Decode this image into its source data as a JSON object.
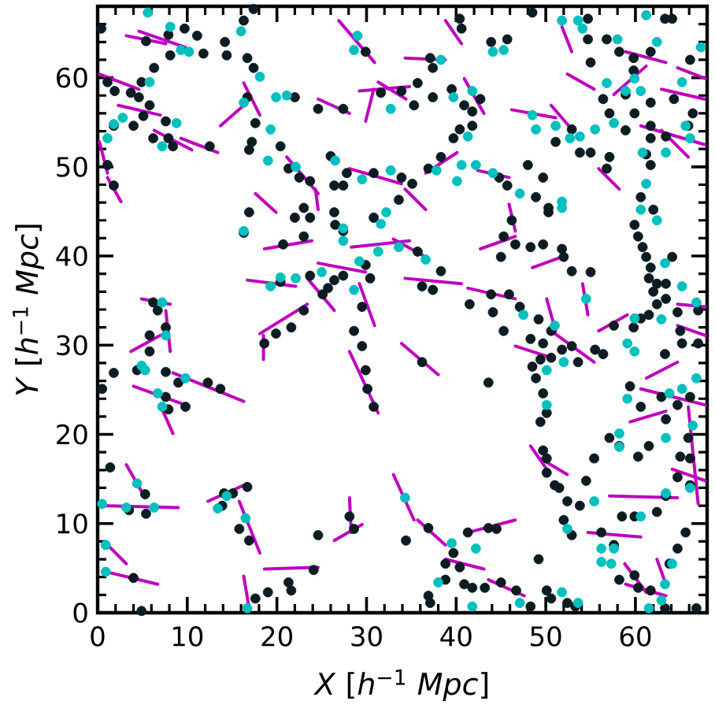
{
  "chart_data": {
    "type": "scatter",
    "xlabel": "*X* [*h*$^{−1}$ *Mpc*]",
    "ylabel": "*Y* [*h*$^{−1}$ *Mpc*]",
    "xlim": [
      0,
      68
    ],
    "ylim": [
      0,
      68
    ],
    "xticks": [
      0,
      {
        "value": 2,
        "label": null
      },
      {
        "value": 4,
        "label": null
      },
      {
        "value": 6,
        "label": null
      },
      {
        "value": 8,
        "label": null
      },
      10,
      {
        "value": 12,
        "label": null
      },
      {
        "value": 14,
        "label": null
      },
      {
        "value": 16,
        "label": null
      },
      {
        "value": 18,
        "label": null
      },
      20,
      {
        "value": 22,
        "label": null
      },
      {
        "value": 24,
        "label": null
      },
      {
        "value": 26,
        "label": null
      },
      {
        "value": 28,
        "label": null
      },
      30,
      {
        "value": 32,
        "label": null
      },
      {
        "value": 34,
        "label": null
      },
      {
        "value": 36,
        "label": null
      },
      {
        "value": 38,
        "label": null
      },
      40,
      {
        "value": 42,
        "label": null
      },
      {
        "value": 44,
        "label": null
      },
      {
        "value": 46,
        "label": null
      },
      {
        "value": 48,
        "label": null
      },
      50,
      {
        "value": 52,
        "label": null
      },
      {
        "value": 54,
        "label": null
      },
      {
        "value": 56,
        "label": null
      },
      {
        "value": 58,
        "label": null
      },
      60,
      {
        "value": 62,
        "label": null
      },
      {
        "value": 64,
        "label": null
      },
      {
        "value": 66,
        "label": null
      }
    ],
    "yticks": [
      0,
      {
        "value": 2,
        "label": null
      },
      {
        "value": 4,
        "label": null
      },
      {
        "value": 6,
        "label": null
      },
      {
        "value": 8,
        "label": null
      },
      10,
      {
        "value": 12,
        "label": null
      },
      {
        "value": 14,
        "label": null
      },
      {
        "value": 16,
        "label": null
      },
      {
        "value": 18,
        "label": null
      },
      20,
      {
        "value": 22,
        "label": null
      },
      {
        "value": 24,
        "label": null
      },
      {
        "value": 26,
        "label": null
      },
      {
        "value": 28,
        "label": null
      },
      30,
      {
        "value": 32,
        "label": null
      },
      {
        "value": 34,
        "label": null
      },
      {
        "value": 36,
        "label": null
      },
      {
        "value": 38,
        "label": null
      },
      40,
      {
        "value": 42,
        "label": null
      },
      {
        "value": 44,
        "label": null
      },
      {
        "value": 46,
        "label": null
      },
      {
        "value": 48,
        "label": null
      },
      50,
      {
        "value": 52,
        "label": null
      },
      {
        "value": 54,
        "label": null
      },
      {
        "value": 56,
        "label": null
      },
      {
        "value": 58,
        "label": null
      },
      60,
      {
        "value": 62,
        "label": null
      },
      {
        "value": 64,
        "label": null
      },
      {
        "value": 66,
        "label": null
      }
    ],
    "marker": "circle",
    "series": [
      {
        "type": "line",
        "marker": "none",
        "color": "#bf00bf",
        "x": [
          26.9,
          30.9
        ],
        "values": [
          66.4,
          61.7
        ]
      },
      {
        "type": "line",
        "marker": "none",
        "color": "#bf00bf",
        "x": [
          3.2,
          7.6
        ],
        "values": [
          64.7,
          63.8
        ]
      },
      {
        "type": "line",
        "marker": "none",
        "color": "#bf00bf",
        "x": [
          0.2,
          4.6
        ],
        "values": [
          60.4,
          58.7
        ]
      },
      {
        "type": "line",
        "marker": "none",
        "color": "#bf00bf",
        "x": [
          13.7,
          16.3
        ],
        "values": [
          54.6,
          56.9
        ]
      },
      {
        "type": "line",
        "marker": "none",
        "color": "#bf00bf",
        "x": [
          24.6,
          28.1
        ],
        "values": [
          57.6,
          56.0
        ]
      },
      {
        "type": "line",
        "marker": "none",
        "color": "#bf00bf",
        "x": [
          29.2,
          34.8
        ],
        "values": [
          58.5,
          59.0
        ]
      },
      {
        "type": "line",
        "marker": "none",
        "color": "#bf00bf",
        "x": [
          30.8,
          29.9
        ],
        "values": [
          58.7,
          55.1
        ]
      },
      {
        "type": "line",
        "marker": "none",
        "color": "#bf00bf",
        "x": [
          16.3,
          18.1
        ],
        "values": [
          59.4,
          55.8
        ]
      },
      {
        "type": "line",
        "marker": "none",
        "color": "#bf00bf",
        "x": [
          31.3,
          34.4
        ],
        "values": [
          59.5,
          57.6
        ]
      },
      {
        "type": "line",
        "marker": "none",
        "color": "#bf00bf",
        "x": [
          24.3,
          24.6
        ],
        "values": [
          47.5,
          45.2
        ]
      },
      {
        "type": "line",
        "marker": "none",
        "color": "#bf00bf",
        "x": [
          6.3,
          10.5
        ],
        "values": [
          54.1,
          51.9
        ]
      },
      {
        "type": "line",
        "marker": "none",
        "color": "#bf00bf",
        "x": [
          9.3,
          13.4
        ],
        "values": [
          53.2,
          51.6
        ]
      },
      {
        "type": "line",
        "marker": "none",
        "color": "#bf00bf",
        "x": [
          0.2,
          1.1
        ],
        "values": [
          52.8,
          49.3
        ]
      },
      {
        "type": "line",
        "marker": "none",
        "color": "#bf00bf",
        "x": [
          1.1,
          2.6
        ],
        "values": [
          48.8,
          46.1
        ]
      },
      {
        "type": "line",
        "marker": "none",
        "color": "#bf00bf",
        "x": [
          34.3,
          38.8
        ],
        "values": [
          62.2,
          62.0
        ]
      },
      {
        "type": "line",
        "marker": "none",
        "color": "#bf00bf",
        "x": [
          38.8,
          40.6
        ],
        "values": [
          66.4,
          63.8
        ]
      },
      {
        "type": "line",
        "marker": "none",
        "color": "#bf00bf",
        "x": [
          46.2,
          51.1
        ],
        "values": [
          56.4,
          55.5
        ]
      },
      {
        "type": "line",
        "marker": "none",
        "color": "#bf00bf",
        "x": [
          52.4,
          55.4
        ],
        "values": [
          60.4,
          58.7
        ]
      },
      {
        "type": "line",
        "marker": "none",
        "color": "#bf00bf",
        "x": [
          57.6,
          61.2
        ],
        "values": [
          58.1,
          61.3
        ]
      },
      {
        "type": "line",
        "marker": "none",
        "color": "#bf00bf",
        "x": [
          62.9,
          67.7
        ],
        "values": [
          58.7,
          57.6
        ]
      },
      {
        "type": "line",
        "marker": "none",
        "color": "#bf00bf",
        "x": [
          60.6,
          67.7
        ],
        "values": [
          54.6,
          52.5
        ]
      },
      {
        "type": "line",
        "marker": "none",
        "color": "#bf00bf",
        "x": [
          62.9,
          65.9
        ],
        "values": [
          54.1,
          51.1
        ]
      },
      {
        "type": "line",
        "marker": "none",
        "color": "#bf00bf",
        "x": [
          55.9,
          58.2
        ],
        "values": [
          49.8,
          47.5
        ]
      },
      {
        "type": "line",
        "marker": "none",
        "color": "#bf00bf",
        "x": [
          36.6,
          40.1
        ],
        "values": [
          49.3,
          51.6
        ]
      },
      {
        "type": "line",
        "marker": "none",
        "color": "#bf00bf",
        "x": [
          42.4,
          45.9
        ],
        "values": [
          49.6,
          48.8
        ]
      },
      {
        "type": "line",
        "marker": "none",
        "color": "#bf00bf",
        "x": [
          34.3,
          36.6
        ],
        "values": [
          47.5,
          45.2
        ]
      },
      {
        "type": "line",
        "marker": "none",
        "color": "#bf00bf",
        "x": [
          16.7,
          22.1
        ],
        "values": [
          37.3,
          36.6
        ]
      },
      {
        "type": "line",
        "marker": "none",
        "color": "#bf00bf",
        "x": [
          18.6,
          23.9
        ],
        "values": [
          40.8,
          41.7
        ]
      },
      {
        "type": "line",
        "marker": "none",
        "color": "#bf00bf",
        "x": [
          28.3,
          34.8
        ],
        "values": [
          41.0,
          41.7
        ]
      },
      {
        "type": "line",
        "marker": "none",
        "color": "#bf00bf",
        "x": [
          29.2,
          30.9
        ],
        "values": [
          36.9,
          32.2
        ]
      },
      {
        "type": "line",
        "marker": "none",
        "color": "#bf00bf",
        "x": [
          28.1,
          31.3
        ],
        "values": [
          29.3,
          22.4
        ]
      },
      {
        "type": "line",
        "marker": "none",
        "color": "#bf00bf",
        "x": [
          18.1,
          23.4
        ],
        "values": [
          31.3,
          34.6
        ]
      },
      {
        "type": "line",
        "marker": "none",
        "color": "#bf00bf",
        "x": [
          18.5,
          18.5
        ],
        "values": [
          31.1,
          28.4
        ]
      },
      {
        "type": "line",
        "marker": "none",
        "color": "#bf00bf",
        "x": [
          4.9,
          8.1
        ],
        "values": [
          35.2,
          34.6
        ]
      },
      {
        "type": "line",
        "marker": "none",
        "color": "#bf00bf",
        "x": [
          7.6,
          8.1
        ],
        "values": [
          33.9,
          29.3
        ]
      },
      {
        "type": "line",
        "marker": "none",
        "color": "#bf00bf",
        "x": [
          3.7,
          7.0
        ],
        "values": [
          29.3,
          31.1
        ]
      },
      {
        "type": "line",
        "marker": "none",
        "color": "#bf00bf",
        "x": [
          8.4,
          16.3
        ],
        "values": [
          26.9,
          23.7
        ]
      },
      {
        "type": "line",
        "marker": "none",
        "color": "#bf00bf",
        "x": [
          4.0,
          9.8
        ],
        "values": [
          25.4,
          23.3
        ]
      },
      {
        "type": "line",
        "marker": "none",
        "color": "#bf00bf",
        "x": [
          33.9,
          38.0
        ],
        "values": [
          30.2,
          26.7
        ]
      },
      {
        "type": "line",
        "marker": "none",
        "color": "#bf00bf",
        "x": [
          33.0,
          36.6
        ],
        "values": [
          41.9,
          39.9
        ]
      },
      {
        "type": "line",
        "marker": "none",
        "color": "#bf00bf",
        "x": [
          34.3,
          40.6
        ],
        "values": [
          37.5,
          36.9
        ]
      },
      {
        "type": "line",
        "marker": "none",
        "color": "#bf00bf",
        "x": [
          41.3,
          46.6
        ],
        "values": [
          36.4,
          35.2
        ]
      },
      {
        "type": "line",
        "marker": "none",
        "color": "#bf00bf",
        "x": [
          42.7,
          46.6
        ],
        "values": [
          40.8,
          42.2
        ]
      },
      {
        "type": "line",
        "marker": "none",
        "color": "#bf00bf",
        "x": [
          48.5,
          51.8
        ],
        "values": [
          38.7,
          39.9
        ]
      },
      {
        "type": "line",
        "marker": "none",
        "color": "#bf00bf",
        "x": [
          50.1,
          51.1
        ],
        "values": [
          35.2,
          31.6
        ]
      },
      {
        "type": "line",
        "marker": "none",
        "color": "#bf00bf",
        "x": [
          54.1,
          54.7
        ],
        "values": [
          36.9,
          33.4
        ]
      },
      {
        "type": "line",
        "marker": "none",
        "color": "#bf00bf",
        "x": [
          55.9,
          59.1
        ],
        "values": [
          31.6,
          33.4
        ]
      },
      {
        "type": "line",
        "marker": "none",
        "color": "#bf00bf",
        "x": [
          61.2,
          64.7
        ],
        "values": [
          26.3,
          28.1
        ]
      },
      {
        "type": "line",
        "marker": "none",
        "color": "#bf00bf",
        "x": [
          60.6,
          67.8
        ],
        "values": [
          25.1,
          23.3
        ]
      },
      {
        "type": "line",
        "marker": "none",
        "color": "#bf00bf",
        "x": [
          45.9,
          46.6
        ],
        "values": [
          45.8,
          42.8
        ]
      },
      {
        "type": "line",
        "marker": "none",
        "color": "#bf00bf",
        "x": [
          3.2,
          5.3
        ],
        "values": [
          16.6,
          12.9
        ]
      },
      {
        "type": "line",
        "marker": "none",
        "color": "#bf00bf",
        "x": [
          0.5,
          9.0
        ],
        "values": [
          12.0,
          11.8
        ]
      },
      {
        "type": "line",
        "marker": "none",
        "color": "#bf00bf",
        "x": [
          12.3,
          16.3
        ],
        "values": [
          12.5,
          14.3
        ]
      },
      {
        "type": "line",
        "marker": "none",
        "color": "#bf00bf",
        "x": [
          15.8,
          18.1
        ],
        "values": [
          12.5,
          6.7
        ]
      },
      {
        "type": "line",
        "marker": "none",
        "color": "#bf00bf",
        "x": [
          1.1,
          3.2
        ],
        "values": [
          7.6,
          5.5
        ]
      },
      {
        "type": "line",
        "marker": "none",
        "color": "#bf00bf",
        "x": [
          0.9,
          6.7
        ],
        "values": [
          4.6,
          3.2
        ]
      },
      {
        "type": "line",
        "marker": "none",
        "color": "#bf00bf",
        "x": [
          18.6,
          24.6
        ],
        "values": [
          4.9,
          5.1
        ]
      },
      {
        "type": "line",
        "marker": "none",
        "color": "#bf00bf",
        "x": [
          28.1,
          28.3
        ],
        "values": [
          12.9,
          9.0
        ]
      },
      {
        "type": "line",
        "marker": "none",
        "color": "#bf00bf",
        "x": [
          26.4,
          29.5
        ],
        "values": [
          8.1,
          9.9
        ]
      },
      {
        "type": "line",
        "marker": "none",
        "color": "#bf00bf",
        "x": [
          16.3,
          16.9
        ],
        "values": [
          4.1,
          0.5
        ]
      },
      {
        "type": "line",
        "marker": "none",
        "color": "#bf00bf",
        "x": [
          7.2,
          8.4
        ],
        "values": [
          22.8,
          20.1
        ]
      },
      {
        "type": "line",
        "marker": "none",
        "color": "#bf00bf",
        "x": [
          33.0,
          35.3
        ],
        "values": [
          15.5,
          10.4
        ]
      },
      {
        "type": "line",
        "marker": "none",
        "color": "#bf00bf",
        "x": [
          35.7,
          38.8
        ],
        "values": [
          10.4,
          7.6
        ]
      },
      {
        "type": "line",
        "marker": "none",
        "color": "#bf00bf",
        "x": [
          41.3,
          46.6
        ],
        "values": [
          9.0,
          10.4
        ]
      },
      {
        "type": "line",
        "marker": "none",
        "color": "#bf00bf",
        "x": [
          48.3,
          50.1
        ],
        "values": [
          18.7,
          16.1
        ]
      },
      {
        "type": "line",
        "marker": "none",
        "color": "#bf00bf",
        "x": [
          57.1,
          64.7
        ],
        "values": [
          13.1,
          12.9
        ]
      },
      {
        "type": "line",
        "marker": "none",
        "color": "#bf00bf",
        "x": [
          54.7,
          60.6
        ],
        "values": [
          9.0,
          8.5
        ]
      },
      {
        "type": "line",
        "marker": "none",
        "color": "#bf00bf",
        "x": [
          65.9,
          67.0
        ],
        "values": [
          23.1,
          12.2
        ]
      },
      {
        "type": "line",
        "marker": "none",
        "color": "#bf00bf",
        "x": [
          58.8,
          61.2
        ],
        "values": [
          5.5,
          2.3
        ]
      },
      {
        "type": "line",
        "marker": "none",
        "color": "#bf00bf",
        "x": [
          62.4,
          63.4
        ],
        "values": [
          6.0,
          3.2
        ]
      },
      {
        "type": "line",
        "marker": "none",
        "color": "#bf00bf",
        "x": [
          51.8,
          52.9
        ],
        "values": [
          65.7,
          62.9
        ]
      },
      {
        "type": "line",
        "marker": "none",
        "color": "#bf00bf",
        "x": [
          17.6,
          19.9
        ],
        "values": [
          47.0,
          44.9
        ]
      },
      {
        "type": "line",
        "marker": "none",
        "color": "#bf00bf",
        "x": [
          50.6,
          52.9
        ],
        "values": [
          56.9,
          54.2
        ]
      },
      {
        "type": "line",
        "marker": "none",
        "color": "#bf00bf",
        "x": [
          64.7,
          67.8
        ],
        "values": [
          61.1,
          59.9
        ]
      },
      {
        "type": "line",
        "marker": "none",
        "color": "#bf00bf",
        "x": [
          58.9,
          63.4
        ],
        "values": [
          62.9,
          61.7
        ]
      },
      {
        "type": "line",
        "marker": "none",
        "color": "#bf00bf",
        "x": [
          43.1,
          40.9
        ],
        "values": [
          56.0,
          59.9
        ]
      },
      {
        "type": "line",
        "marker": "none",
        "color": "#bf00bf",
        "x": [
          50.6,
          55.4
        ],
        "values": [
          31.6,
          28.1
        ]
      },
      {
        "type": "line",
        "marker": "none",
        "color": "#bf00bf",
        "x": [
          46.6,
          50.6
        ],
        "values": [
          29.9,
          28.6
        ]
      },
      {
        "type": "line",
        "marker": "none",
        "color": "#bf00bf",
        "x": [
          64.7,
          67.8
        ],
        "values": [
          34.6,
          34.3
        ]
      },
      {
        "type": "line",
        "marker": "none",
        "color": "#bf00bf",
        "x": [
          64.7,
          67.8
        ],
        "values": [
          32.2,
          31.1
        ]
      },
      {
        "type": "line",
        "marker": "none",
        "color": "#bf00bf",
        "x": [
          49.4,
          52.4
        ],
        "values": [
          17.3,
          15.5
        ]
      },
      {
        "type": "line",
        "marker": "none",
        "color": "#bf00bf",
        "x": [
          59.4,
          63.4
        ],
        "values": [
          21.4,
          22.6
        ]
      },
      {
        "type": "line",
        "marker": "none",
        "color": "#bf00bf",
        "x": [
          64.1,
          67.8
        ],
        "values": [
          16.1,
          14.8
        ]
      },
      {
        "type": "line",
        "marker": "none",
        "color": "#bf00bf",
        "x": [
          38.8,
          43.1
        ],
        "values": [
          6.0,
          4.9
        ]
      },
      {
        "type": "line",
        "marker": "none",
        "color": "#bf00bf",
        "x": [
          43.6,
          47.6
        ],
        "values": [
          3.7,
          1.9
        ]
      },
      {
        "type": "line",
        "marker": "none",
        "color": "#bf00bf",
        "x": [
          58.9,
          63.4
        ],
        "values": [
          3.2,
          1.9
        ]
      },
      {
        "type": "line",
        "marker": "none",
        "color": "#bf00bf",
        "x": [
          4.6,
          9.8
        ],
        "values": [
          65.2,
          63.4
        ]
      },
      {
        "type": "line",
        "marker": "none",
        "color": "#bf00bf",
        "x": [
          2.3,
          7.0
        ],
        "values": [
          56.9,
          55.8
        ]
      },
      {
        "type": "line",
        "marker": "none",
        "color": "#bf00bf",
        "x": [
          28.1,
          33.9
        ],
        "values": [
          49.8,
          48.1
        ]
      },
      {
        "type": "line",
        "marker": "none",
        "color": "#bf00bf",
        "x": [
          21.1,
          24.6
        ],
        "values": [
          51.1,
          47.0
        ]
      },
      {
        "type": "line",
        "marker": "none",
        "color": "#bf00bf",
        "x": [
          24.6,
          29.9
        ],
        "values": [
          39.2,
          38.2
        ]
      },
      {
        "type": "line",
        "marker": "none",
        "color": "#bf00bf",
        "x": [
          23.4,
          26.4
        ],
        "values": [
          37.5,
          33.9
        ]
      },
      {
        "color": "#0b1c22",
        "x": [
          0.4,
          5.4,
          7.9,
          9.7,
          11.1,
          11.8,
          8.1,
          14.2,
          14.4,
          16.3,
          17.4,
          16.7,
          17.4,
          6.3,
          1.1,
          1.9,
          3.7,
          4.6,
          4.9,
          5.8,
          5.1,
          7.6,
          1.8,
          4.0,
          6.2,
          7.9,
          8.4,
          12.5,
          16.7,
          17.6,
          17.2,
          16.9,
          22.0,
          24.6,
          27.4,
          29.9,
          31.6,
          33.9,
          20.4,
          21.3,
          22.5,
          23.7,
          26.4,
          27.4,
          26.0,
          27.8,
          30.8,
          33.9,
          1.1,
          1.8,
          23.0,
          33.6,
          40.4,
          40.6,
          48.5,
          43.9,
          45.7,
          37.1,
          37.4,
          35.7,
          35.3,
          37.4,
          39.5,
          40.9,
          41.8,
          42.7,
          41.8,
          40.4,
          39.7,
          38.3,
          36.9,
          35.1,
          44.8,
          45.7,
          48.0,
          49.7,
          48.9,
          50.3,
          52.9,
          53.8,
          55.0,
          57.1,
          56.8,
          51.1,
          56.4,
          58.9,
          57.1,
          59.9,
          58.9,
          61.7,
          61.7,
          61.7,
          61.2,
          61.7,
          60.6,
          63.4,
          64.3,
          66.4,
          65.9,
          54.7,
          54.7,
          55.0,
          58.2,
          59.8,
          61.7,
          63.3,
          64.1,
          66.1,
          59.8,
          56.8,
          16.9,
          16.3,
          20.7,
          23.0,
          22.0,
          23.7,
          26.4,
          26.5,
          27.4,
          30.8,
          20.4,
          23.7,
          25.1,
          25.7,
          26.4,
          27.4,
          29.9,
          30.4,
          23.0,
          21.6,
          19.9,
          18.6,
          29.5,
          28.6,
          29.5,
          29.9,
          30.1,
          30.8,
          6.2,
          6.7,
          7.6,
          5.8,
          5.8,
          4.4,
          1.8,
          0.5,
          7.6,
          9.0,
          12.3,
          13.7,
          7.6,
          9.8,
          50.3,
          46.2,
          45.3,
          46.6,
          48.3,
          49.7,
          51.8,
          52.0,
          52.9,
          55.0,
          45.0,
          35.7,
          38.3,
          36.2,
          37.4,
          41.5,
          43.9,
          44.1,
          45.9,
          47.1,
          45.3,
          49.2,
          48.3,
          50.6,
          49.7,
          51.8,
          52.9,
          50.6,
          49.4,
          48.5,
          48.9,
          49.7,
          50.1,
          53.6,
          55.5,
          56.4,
          57.6,
          59.8,
          60.6,
          62.0,
          59.9,
          60.3,
          60.8,
          61.2,
          61.7,
          61.5,
          62.4,
          62.0,
          62.4,
          61.5,
          63.4,
          64.1,
          63.4,
          65.0,
          64.7,
          67.0,
          67.0,
          65.2,
          63.3,
          59.4,
          60.6,
          62.9,
          64.7,
          66.1,
          36.2,
          43.6,
          7.9,
          1.4,
          5.3,
          3.5,
          5.4,
          14.1,
          15.1,
          16.7,
          13.9,
          15.8,
          16.9,
          24.6,
          28.1,
          28.6,
          4.0,
          4.9,
          17.6,
          19.0,
          21.3,
          21.6,
          24.1,
          49.4,
          49.7,
          50.1,
          50.1,
          51.0,
          51.5,
          52.4,
          53.8,
          52.0,
          52.9,
          57.1,
          58.2,
          60.3,
          61.5,
          63.4,
          66.1,
          64.7,
          63.4,
          62.4,
          59.9,
          58.5,
          56.2,
          65.6,
          64.7,
          63.8,
          61.7,
          60.3,
          59.9,
          58.2,
          55.4,
          54.5,
          57.6,
          49.2,
          43.6,
          44.5,
          41.3,
          36.9,
          34.4,
          38.8,
          39.7,
          40.4,
          38.8,
          40.9,
          41.8,
          43.2,
          45.0,
          46.7,
          36.9,
          37.1,
          48.3,
          50.1,
          50.6,
          52.4,
          53.3,
          63.3,
          66.8,
          65.9,
          65.0,
          66.1
        ],
        "values": [
          65.5,
          64.1,
          64.8,
          65.5,
          64.7,
          62.7,
          62.5,
          64.0,
          62.5,
          66.4,
          67.7,
          62.2,
          61.1,
          61.1,
          59.5,
          58.5,
          58.3,
          57.8,
          59.5,
          56.9,
          55.7,
          55.1,
          54.6,
          54.6,
          53.2,
          53.2,
          52.3,
          52.3,
          57.8,
          54.9,
          52.8,
          51.9,
          57.8,
          56.5,
          56.5,
          62.9,
          58.3,
          58.5,
          52.3,
          49.8,
          48.8,
          48.4,
          47.9,
          47.9,
          51.2,
          49.3,
          49.3,
          48.8,
          50.2,
          47.9,
          45.4,
          46.3,
          66.6,
          65.5,
          67.3,
          64.0,
          64.3,
          62.2,
          61.1,
          59.4,
          56.9,
          57.8,
          58.7,
          56.9,
          56.2,
          57.6,
          54.6,
          54.2,
          53.2,
          51.1,
          49.8,
          48.1,
          48.8,
          47.9,
          50.2,
          48.8,
          46.6,
          45.4,
          54.2,
          51.6,
          51.6,
          51.1,
          49.8,
          52.8,
          57.6,
          58.1,
          56.0,
          56.0,
          54.1,
          57.2,
          54.6,
          53.2,
          51.4,
          50.2,
          46.6,
          53.4,
          57.6,
          56.0,
          54.6,
          66.6,
          64.3,
          61.7,
          62.9,
          62.2,
          62.9,
          66.6,
          66.6,
          62.0,
          60.8,
          64.3,
          44.9,
          42.6,
          41.3,
          42.2,
          44.3,
          44.3,
          44.9,
          43.5,
          42.8,
          44.3,
          37.1,
          37.8,
          35.7,
          36.4,
          37.3,
          37.8,
          39.0,
          37.5,
          33.9,
          32.0,
          31.3,
          30.2,
          34.3,
          31.6,
          29.9,
          27.2,
          25.1,
          23.1,
          34.8,
          33.9,
          32.0,
          31.1,
          29.3,
          27.2,
          26.9,
          25.1,
          27.0,
          25.8,
          25.8,
          25.1,
          24.2,
          23.1,
          44.9,
          44.0,
          42.2,
          41.3,
          41.0,
          41.3,
          40.8,
          39.9,
          38.3,
          38.2,
          39.9,
          40.5,
          38.3,
          36.6,
          36.2,
          34.6,
          35.7,
          33.7,
          35.7,
          34.3,
          31.6,
          32.9,
          30.7,
          31.6,
          30.2,
          29.5,
          29.9,
          28.6,
          28.4,
          27.6,
          26.3,
          24.6,
          22.4,
          28.1,
          29.5,
          29.0,
          32.2,
          32.0,
          33.0,
          45.2,
          43.5,
          42.2,
          41.0,
          39.9,
          38.7,
          37.5,
          36.9,
          36.0,
          34.6,
          33.4,
          36.9,
          39.9,
          35.2,
          31.6,
          33.7,
          33.9,
          30.2,
          30.2,
          29.0,
          25.4,
          23.1,
          24.2,
          23.3,
          24.2,
          28.1,
          25.8,
          22.8,
          16.3,
          13.3,
          11.5,
          11.1,
          13.4,
          13.4,
          14.1,
          12.0,
          9.4,
          8.1,
          8.7,
          10.8,
          9.4,
          3.9,
          0.2,
          1.6,
          2.3,
          3.4,
          2.5,
          4.8,
          21.4,
          18.2,
          17.3,
          15.7,
          14.3,
          14.0,
          12.5,
          12.0,
          10.4,
          8.7,
          19.6,
          18.7,
          17.5,
          18.7,
          21.7,
          17.3,
          15.2,
          13.1,
          11.3,
          10.8,
          10.8,
          9.0,
          9.0,
          7.2,
          5.5,
          2.5,
          2.8,
          4.2,
          3.7,
          17.3,
          14.8,
          7.6,
          6.0,
          9.5,
          9.4,
          9.0,
          9.5,
          8.1,
          5.5,
          6.7,
          5.1,
          3.7,
          3.2,
          2.8,
          2.8,
          3.4,
          2.5,
          1.9,
          1.1,
          0.7,
          2.5,
          1.6,
          1.1,
          0.7,
          0.5,
          0.5,
          19.6,
          17.5,
          14.3
        ]
      },
      {
        "color": "#00bfbf",
        "x": [
          5.6,
          8.1,
          10.2,
          9.3,
          16.0,
          1.1,
          1.8,
          2.8,
          7.2,
          8.8,
          18.1,
          16.3,
          19.9,
          21.1,
          19.3,
          19.0,
          22.1,
          26.5,
          29.5,
          32.7,
          29.0,
          28.6,
          32.7,
          5.8,
          44.1,
          45.3,
          38.3,
          39.7,
          41.8,
          41.3,
          40.6,
          42.2,
          44.1,
          40.1,
          37.8,
          47.1,
          51.8,
          48.5,
          48.9,
          51.1,
          55.5,
          53.8,
          52.7,
          56.8,
          58.9,
          59.9,
          60.6,
          57.6,
          60.8,
          61.2,
          65.6,
          66.1,
          63.4,
          53.6,
          54.1,
          51.8,
          61.2,
          58.0,
          62.4,
          67.3,
          65.2,
          16.3,
          27.4,
          27.4,
          32.2,
          31.6,
          31.3,
          33.6,
          19.3,
          20.4,
          22.1,
          25.0,
          29.2,
          28.6,
          7.6,
          7.2,
          4.9,
          5.3,
          9.8,
          6.7,
          7.2,
          36.6,
          51.8,
          60.6,
          62.4,
          63.3,
          65.2,
          66.8,
          62.9,
          59.9,
          59.1,
          59.9,
          54.5,
          51.0,
          52.0,
          50.1,
          47.5,
          65.2,
          63.8,
          66.8,
          59.1,
          50.1,
          4.4,
          0.5,
          3.2,
          6.3,
          13.4,
          14.4,
          16.5,
          0.9,
          0.9,
          16.7,
          34.3,
          55.4,
          58.2,
          58.2,
          63.4,
          66.4,
          66.1,
          63.4,
          60.6,
          56.2,
          57.6,
          56.2,
          57.3,
          64.1,
          63.3,
          52.4,
          39.5,
          42.2,
          38.0,
          51.8,
          53.6,
          47.1,
          41.8,
          61.5,
          62.9
        ],
        "values": [
          67.3,
          65.7,
          62.9,
          63.1,
          65.2,
          53.2,
          54.8,
          55.5,
          52.3,
          54.9,
          60.1,
          57.2,
          57.8,
          58.0,
          54.2,
          50.7,
          50.0,
          50.7,
          48.6,
          49.6,
          64.7,
          63.1,
          56.5,
          59.5,
          62.9,
          63.1,
          62.0,
          57.8,
          58.5,
          53.4,
          50.2,
          50.2,
          49.3,
          48.4,
          49.6,
          47.0,
          46.1,
          55.8,
          54.2,
          54.6,
          54.2,
          53.4,
          53.2,
          59.4,
          58.5,
          59.9,
          58.5,
          54.9,
          51.6,
          48.1,
          54.6,
          53.2,
          51.6,
          66.4,
          65.5,
          66.4,
          67.0,
          64.3,
          64.0,
          63.4,
          59.5,
          42.8,
          43.1,
          41.7,
          44.9,
          43.6,
          40.5,
          41.0,
          36.6,
          37.6,
          37.5,
          38.2,
          39.4,
          36.2,
          31.1,
          34.8,
          27.7,
          27.2,
          26.3,
          24.6,
          23.1,
          39.6,
          45.4,
          45.2,
          44.0,
          39.2,
          36.6,
          34.8,
          32.9,
          33.0,
          30.2,
          29.3,
          35.2,
          32.2,
          28.1,
          27.2,
          33.4,
          25.1,
          24.6,
          26.3,
          24.0,
          23.3,
          14.5,
          12.2,
          11.8,
          11.8,
          11.7,
          13.1,
          10.6,
          7.6,
          4.6,
          0.5,
          12.9,
          12.5,
          20.1,
          18.6,
          19.6,
          21.0,
          14.0,
          13.4,
          10.8,
          7.2,
          7.2,
          5.7,
          5.5,
          5.5,
          3.2,
          9.4,
          7.8,
          7.2,
          3.4,
          2.3,
          1.1,
          1.1,
          0.7,
          0.5,
          1.4
        ]
      }
    ]
  }
}
